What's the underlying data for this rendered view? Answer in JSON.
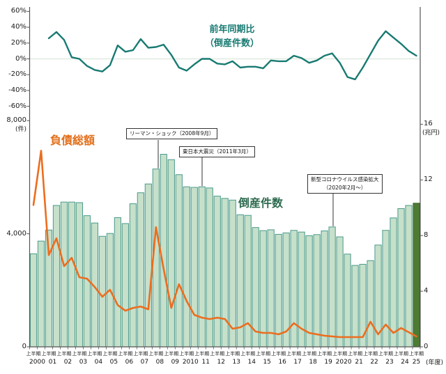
{
  "labels": {
    "yoy_line_1": "前年同期比",
    "yoy_line_2": "（倒産件数）",
    "liabilities": "負債総額",
    "bankruptcies": "倒産件数"
  },
  "annotations": [
    {
      "lines": [
        "リーマン・ショック（2008年9月）"
      ]
    },
    {
      "lines": [
        "東日本大震災（2011年3月）"
      ]
    },
    {
      "lines": [
        "新型コロナウイルス感染拡大",
        "（2020年2月～）"
      ]
    }
  ],
  "axes": {
    "pct_ticks": [
      "60%",
      "40%",
      "20%",
      "0%",
      "-20%",
      "-40%",
      "-60%"
    ],
    "pct_values": [
      60,
      40,
      20,
      0,
      -20,
      -40,
      -60
    ],
    "count_ticks": [
      "8,000",
      "4,000",
      "0"
    ],
    "count_values": [
      8000,
      4000,
      0
    ],
    "count_unit": "(件)",
    "yen_ticks": [
      "16",
      "12",
      "8",
      "4",
      "0"
    ],
    "yen_values": [
      16,
      12,
      8,
      4,
      0
    ],
    "yen_unit": "(兆円)",
    "x_unit": "(年度)",
    "half_tick_label": "上半期",
    "years": [
      "2000",
      "01",
      "02",
      "03",
      "04",
      "05",
      "06",
      "07",
      "08",
      "09",
      "2010",
      "11",
      "12",
      "13",
      "14",
      "15",
      "16",
      "17",
      "18",
      "19",
      "2020",
      "21",
      "22",
      "23",
      "24",
      "25"
    ]
  },
  "colors": {
    "bar_fill": "#c6e0ca",
    "bar_stroke": "#4a9a8c",
    "bar_last_fill": "#4e7b33",
    "bar_last_stroke": "#3d642a",
    "yoy_line": "#187a72",
    "liabilities_line": "#ec6d1e",
    "zero_grid": "#dce8dc",
    "axis": "#555555",
    "label_green": "#2d6a4f",
    "label_orange": "#e2711d"
  },
  "chart_data": [
    {
      "type": "bar",
      "title": "倒産件数",
      "unit": "件",
      "ylim": [
        0,
        8800
      ],
      "categories": [
        "2000上半期",
        "2000下半期",
        "2001上半期",
        "2001下半期",
        "2002上半期",
        "2002下半期",
        "2003上半期",
        "2003下半期",
        "2004上半期",
        "2004下半期",
        "2005上半期",
        "2005下半期",
        "2006上半期",
        "2006下半期",
        "2007上半期",
        "2007下半期",
        "2008上半期",
        "2008下半期",
        "2009上半期",
        "2009下半期",
        "2010上半期",
        "2010下半期",
        "2011上半期",
        "2011下半期",
        "2012上半期",
        "2012下半期",
        "2013上半期",
        "2013下半期",
        "2014上半期",
        "2014下半期",
        "2015上半期",
        "2015下半期",
        "2016上半期",
        "2016下半期",
        "2017上半期",
        "2017下半期",
        "2018上半期",
        "2018下半期",
        "2019上半期",
        "2019下半期",
        "2020上半期",
        "2020下半期",
        "2021上半期",
        "2021下半期",
        "2022上半期",
        "2022下半期",
        "2023上半期",
        "2023下半期",
        "2024上半期",
        "2024下半期",
        "2025上半期"
      ],
      "values": [
        3290,
        3740,
        4130,
        5000,
        5120,
        5120,
        5100,
        4640,
        4380,
        3910,
        4010,
        4570,
        4360,
        5060,
        5450,
        5760,
        6290,
        6810,
        6620,
        6090,
        5660,
        5640,
        5660,
        5620,
        5330,
        5250,
        5190,
        4670,
        4650,
        4220,
        4110,
        4140,
        3980,
        4030,
        4120,
        4060,
        3930,
        3970,
        4100,
        4240,
        3890,
        3280,
        2880,
        2920,
        3050,
        3600,
        4120,
        4560,
        4890,
        5000,
        5080
      ],
      "highlight_last": true
    },
    {
      "type": "line",
      "title": "前年同期比（倒産件数）",
      "unit": "%",
      "ylim": [
        -60,
        60
      ],
      "start_category": "2001上半期",
      "values": [
        26,
        34,
        24,
        2,
        0,
        -9,
        -14,
        -16,
        -8,
        17,
        9,
        11,
        25,
        14,
        15,
        18,
        5,
        -11,
        -15,
        -7,
        0,
        0,
        -6,
        -7,
        -3,
        -11,
        -10,
        -10,
        -12,
        -2,
        -3,
        -3,
        4,
        1,
        -5,
        -2,
        4,
        7,
        -5,
        -23,
        -26,
        -11,
        6,
        23,
        35,
        27,
        19,
        10,
        4
      ]
    },
    {
      "type": "line",
      "title": "負債総額",
      "unit": "兆円",
      "ylim": [
        0,
        16.5
      ],
      "values": [
        10.2,
        14.1,
        6.6,
        7.8,
        5.8,
        6.4,
        5.0,
        4.9,
        4.3,
        3.6,
        4.1,
        3.0,
        2.6,
        2.8,
        2.9,
        2.7,
        8.6,
        5.6,
        2.8,
        4.5,
        3.3,
        2.3,
        2.1,
        2.0,
        2.1,
        2.0,
        1.3,
        1.4,
        1.7,
        1.1,
        1.0,
        1.0,
        0.9,
        1.1,
        1.7,
        1.3,
        1.0,
        0.9,
        0.8,
        0.75,
        0.7,
        0.7,
        0.7,
        0.7,
        1.8,
        0.9,
        1.6,
        1.0,
        1.35,
        1.05,
        0.75
      ]
    }
  ]
}
